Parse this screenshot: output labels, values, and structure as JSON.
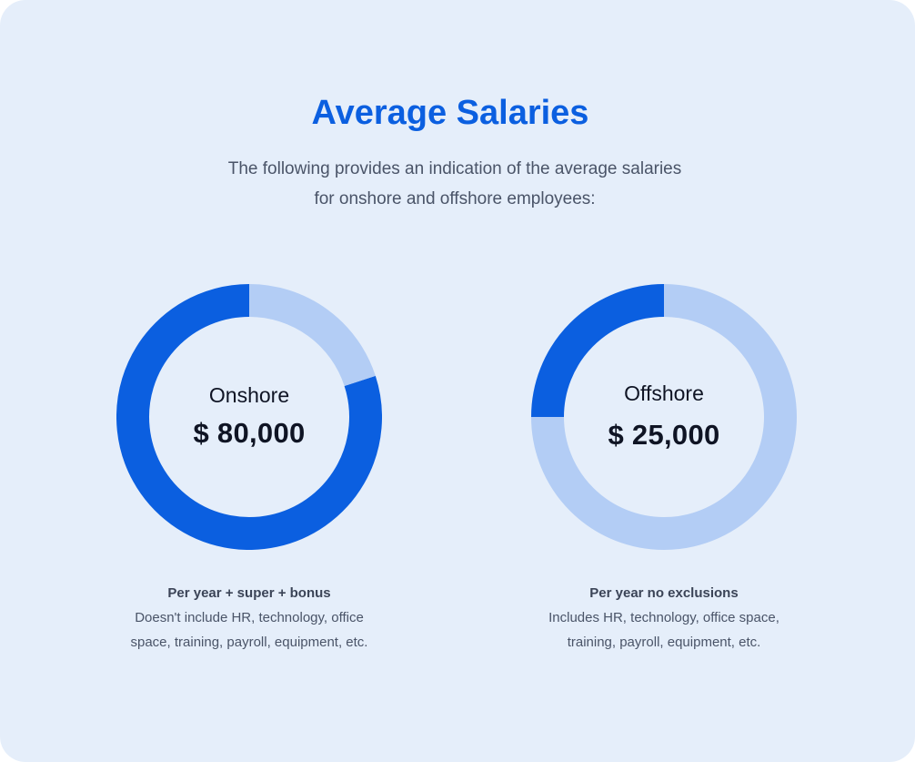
{
  "title": "Average Salaries",
  "subtitle_line1": "The following provides an indication of the average salaries",
  "subtitle_line2": "for onshore and offshore employees:",
  "colors": {
    "primary": "#0b5fe0",
    "track": "#b3cdf5",
    "background": "#e5eefa"
  },
  "chart_data": [
    {
      "type": "pie",
      "variant": "donut",
      "center_label": "Onshore",
      "center_value": "$ 80,000",
      "slices": [
        {
          "value": 80
        },
        {
          "value": 20
        }
      ],
      "caption_title": "Per year + super + bonus",
      "caption_line1": "Doesn't include HR, technology, office",
      "caption_line2": "space, training, payroll, equipment, etc."
    },
    {
      "type": "pie",
      "variant": "donut",
      "center_label": "Offshore",
      "center_value": "$ 25,000",
      "slices": [
        {
          "value": 25
        },
        {
          "value": 75
        }
      ],
      "caption_title": "Per year no exclusions",
      "caption_line1": "Includes HR, technology, office space,",
      "caption_line2": "training, payroll, equipment, etc."
    }
  ]
}
